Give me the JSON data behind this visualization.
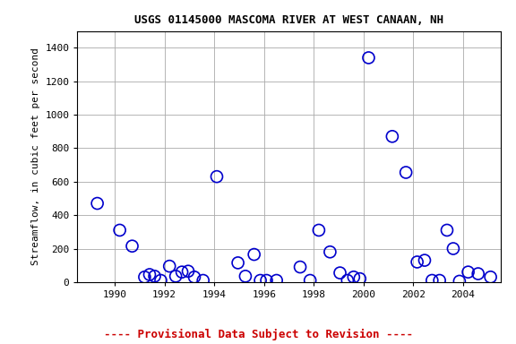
{
  "title": "USGS 01145000 MASCOMA RIVER AT WEST CANAAN, NH",
  "ylabel": "Streamflow, in cubic feet per second",
  "footnote": "---- Provisional Data Subject to Revision ----",
  "xlim": [
    1988.5,
    2005.5
  ],
  "ylim": [
    0,
    1500
  ],
  "yticks": [
    0,
    200,
    400,
    600,
    800,
    1000,
    1200,
    1400
  ],
  "xticks": [
    1990,
    1992,
    1994,
    1996,
    1998,
    2000,
    2002,
    2004
  ],
  "x": [
    1989.3,
    1990.2,
    1990.7,
    1991.2,
    1991.4,
    1991.6,
    1991.85,
    1992.2,
    1992.45,
    1992.7,
    1992.95,
    1993.2,
    1993.55,
    1994.1,
    1994.95,
    1995.25,
    1995.6,
    1995.85,
    1996.1,
    1996.5,
    1997.45,
    1997.85,
    1998.2,
    1998.65,
    1999.05,
    1999.35,
    1999.6,
    1999.85,
    2000.2,
    2001.15,
    2001.7,
    2002.15,
    2002.45,
    2002.75,
    2003.05,
    2003.35,
    2003.6,
    2003.85,
    2004.2,
    2004.6,
    2005.1
  ],
  "y": [
    470,
    310,
    215,
    30,
    45,
    35,
    10,
    95,
    35,
    60,
    65,
    30,
    10,
    630,
    115,
    35,
    165,
    10,
    10,
    10,
    90,
    10,
    310,
    180,
    55,
    10,
    30,
    20,
    1340,
    870,
    655,
    120,
    130,
    10,
    10,
    310,
    200,
    5,
    60,
    50,
    30
  ],
  "marker_color": "#0000cc",
  "marker_size": 5,
  "marker_lw": 1.2,
  "bg_color": "#ffffff",
  "grid_color": "#aaaaaa",
  "title_fontsize": 9,
  "tick_fontsize": 8,
  "label_fontsize": 8,
  "footnote_color": "#cc0000",
  "footnote_fontsize": 9
}
